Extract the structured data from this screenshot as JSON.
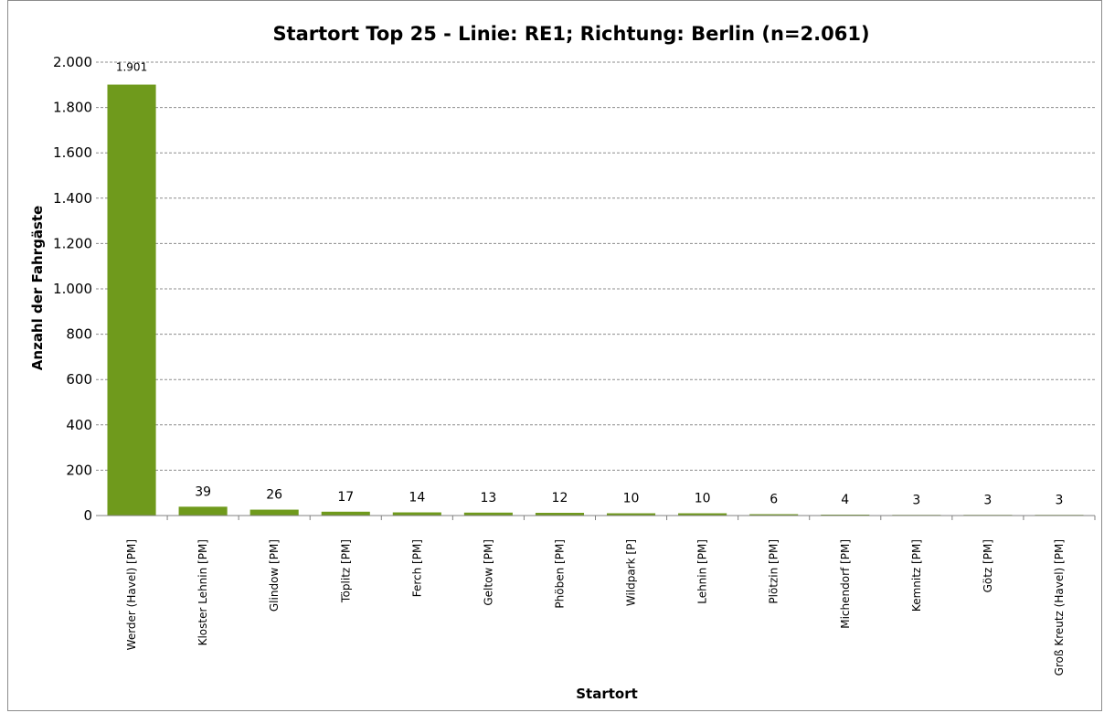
{
  "chart_data": {
    "type": "bar",
    "title": "Startort Top 25 - Linie: RE1; Richtung: Berlin (n=2.061)",
    "xlabel": "Startort",
    "ylabel": "Anzahl der Fahrgäste",
    "ylim": [
      0,
      2000
    ],
    "yticks": [
      0,
      200,
      400,
      600,
      800,
      1000,
      1200,
      1400,
      1600,
      1800,
      2000
    ],
    "ytick_labels": [
      "0",
      "200",
      "400",
      "600",
      "800",
      "1.000",
      "1.200",
      "1.400",
      "1.600",
      "1.800",
      "2.000"
    ],
    "categories": [
      "Werder (Havel) [PM]",
      "Kloster Lehnin [PM]",
      "Glindow [PM]",
      "Töplitz [PM]",
      "Ferch [PM]",
      "Geltow [PM]",
      "Phöben [PM]",
      "Wildpark [P]",
      "Lehnin [PM]",
      "Plötzin [PM]",
      "Michendorf [PM]",
      "Kemnitz [PM]",
      "Götz [PM]",
      "Groß Kreutz (Havel) [PM]"
    ],
    "values": [
      1901,
      39,
      26,
      17,
      14,
      13,
      12,
      10,
      10,
      6,
      4,
      3,
      3,
      3
    ],
    "value_labels": [
      "1.901",
      "39",
      "26",
      "17",
      "14",
      "13",
      "12",
      "10",
      "10",
      "6",
      "4",
      "3",
      "3",
      "3"
    ],
    "bar_color": "#6f9a1c",
    "grid": true,
    "grid_style": "dashed",
    "legend": false
  }
}
